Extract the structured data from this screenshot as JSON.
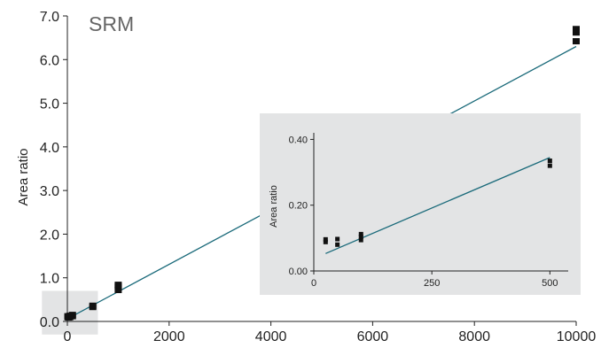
{
  "chart_data": [
    {
      "type": "scatter",
      "title": "SRM",
      "xlabel": "",
      "ylabel": "Area ratio",
      "xlim": [
        0,
        10000
      ],
      "ylim": [
        0,
        7
      ],
      "x_ticks": [
        "0",
        "2000",
        "4000",
        "6000",
        "8000",
        "10000"
      ],
      "y_ticks": [
        "0.0",
        "1.0",
        "2.0",
        "3.0",
        "4.0",
        "5.0",
        "6.0",
        "7.0"
      ],
      "grid": false,
      "points": [
        {
          "x": 10,
          "y": 0.1
        },
        {
          "x": 10,
          "y": 0.12
        },
        {
          "x": 25,
          "y": 0.09
        },
        {
          "x": 25,
          "y": 0.11
        },
        {
          "x": 50,
          "y": 0.1
        },
        {
          "x": 50,
          "y": 0.13
        },
        {
          "x": 100,
          "y": 0.12
        },
        {
          "x": 100,
          "y": 0.15
        },
        {
          "x": 500,
          "y": 0.33
        },
        {
          "x": 500,
          "y": 0.36
        },
        {
          "x": 1000,
          "y": 0.72
        },
        {
          "x": 1000,
          "y": 0.8
        },
        {
          "x": 1000,
          "y": 0.84
        },
        {
          "x": 10000,
          "y": 6.42
        },
        {
          "x": 10000,
          "y": 6.62
        },
        {
          "x": 10000,
          "y": 6.7
        }
      ],
      "fit_line": {
        "x": [
          0,
          10000
        ],
        "y": [
          0.06,
          6.3
        ]
      },
      "highlight_region": {
        "x": [
          -500,
          600
        ],
        "y": [
          -0.3,
          0.7
        ]
      },
      "colors": {
        "line": "#1a6a7a",
        "marker": "#111111",
        "highlight": "#e3e4e5"
      }
    },
    {
      "type": "scatter",
      "title": "",
      "xlabel": "",
      "ylabel": "Area ratio",
      "xlim": [
        0,
        520
      ],
      "ylim": [
        0,
        0.42
      ],
      "x_ticks": [
        "0",
        "250",
        "500"
      ],
      "y_ticks": [
        "0.00",
        "0.20",
        "0.40"
      ],
      "grid": false,
      "points": [
        {
          "x": 25,
          "y": 0.088
        },
        {
          "x": 25,
          "y": 0.096
        },
        {
          "x": 50,
          "y": 0.08
        },
        {
          "x": 50,
          "y": 0.097
        },
        {
          "x": 100,
          "y": 0.094
        },
        {
          "x": 100,
          "y": 0.104
        },
        {
          "x": 100,
          "y": 0.112
        },
        {
          "x": 500,
          "y": 0.32
        },
        {
          "x": 500,
          "y": 0.335
        }
      ],
      "fit_line": {
        "x": [
          25,
          500
        ],
        "y": [
          0.053,
          0.345
        ]
      },
      "background": "#e3e4e5",
      "colors": {
        "line": "#1a6a7a",
        "marker": "#111111"
      }
    }
  ]
}
